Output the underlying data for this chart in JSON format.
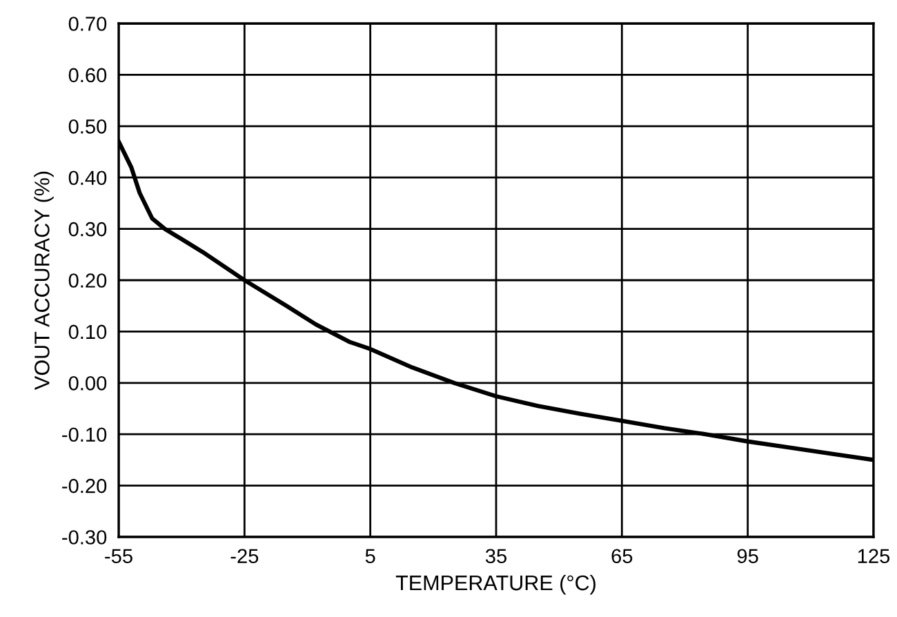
{
  "chart_data": {
    "type": "line",
    "xlabel": "TEMPERATURE (°C)",
    "ylabel": "VOUT ACCURACY (%)",
    "xlim": [
      -55,
      125
    ],
    "xticks": [
      -55,
      -25,
      5,
      35,
      65,
      95,
      125
    ],
    "ylim": [
      -0.3,
      0.7
    ],
    "yticks": [
      {
        "value": -0.3,
        "label": "-0.30"
      },
      {
        "value": -0.2,
        "label": "-0.20"
      },
      {
        "value": -0.1,
        "label": "-0.10"
      },
      {
        "value": 0,
        "label": "0.00"
      },
      {
        "value": 0.1,
        "label": "0.10"
      },
      {
        "value": 0.2,
        "label": "0.20"
      },
      {
        "value": 0.3,
        "label": "0.30"
      },
      {
        "value": 0.4,
        "label": "0.40"
      },
      {
        "value": 0.5,
        "label": "0.50"
      },
      {
        "value": 0.6,
        "label": "0.60"
      },
      {
        "value": 0.7,
        "label": "0.70"
      }
    ],
    "grid": true,
    "line_style": "solid",
    "series": [
      {
        "color": "#000000",
        "x": [
          -55,
          -52,
          -50,
          -47,
          -44,
          -40,
          -35,
          -25,
          -15,
          -8,
          0,
          5,
          15,
          25,
          35,
          45,
          55,
          65,
          75,
          85,
          95,
          105,
          115,
          125
        ],
        "values": [
          0.47,
          0.42,
          0.37,
          0.32,
          0.3,
          0.28,
          0.255,
          0.2,
          0.15,
          0.114,
          0.08,
          0.066,
          0.03,
          0.0,
          -0.026,
          -0.045,
          -0.06,
          -0.074,
          -0.088,
          -0.1,
          -0.114,
          -0.126,
          -0.138,
          -0.15
        ]
      }
    ]
  }
}
